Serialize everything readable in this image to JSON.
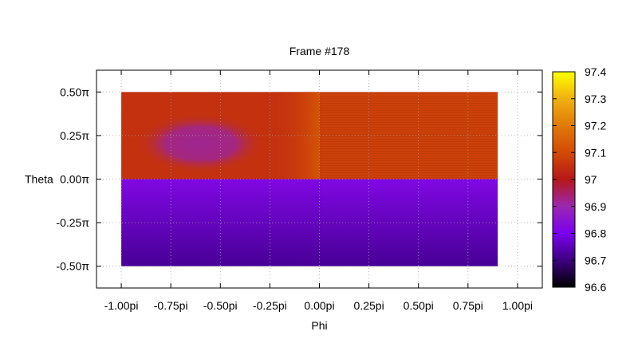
{
  "chart_data": {
    "type": "heatmap",
    "title": "Frame #178",
    "xlabel": "Phi",
    "ylabel": "Theta",
    "xlim": [
      -1.125,
      1.125
    ],
    "ylim": [
      -0.625,
      0.625
    ],
    "x_ticks": [
      {
        "value": -1.0,
        "label": "-1.00pi"
      },
      {
        "value": -0.75,
        "label": "-0.75pi"
      },
      {
        "value": -0.5,
        "label": "-0.50pi"
      },
      {
        "value": -0.25,
        "label": "-0.25pi"
      },
      {
        "value": 0.0,
        "label": "0.00pi"
      },
      {
        "value": 0.25,
        "label": "0.25pi"
      },
      {
        "value": 0.5,
        "label": "0.50pi"
      },
      {
        "value": 0.75,
        "label": "0.75pi"
      },
      {
        "value": 1.0,
        "label": "1.00pi"
      }
    ],
    "y_ticks": [
      {
        "value": 0.5,
        "label": "0.50π"
      },
      {
        "value": 0.25,
        "label": "0.25π"
      },
      {
        "value": 0.0,
        "label": "0.00π"
      },
      {
        "value": -0.25,
        "label": "-0.25π"
      },
      {
        "value": -0.5,
        "label": "-0.50π"
      }
    ],
    "grid": true,
    "data_extent": {
      "x": [
        -1.0,
        0.9
      ],
      "y": [
        -0.5,
        0.5
      ]
    },
    "regions": [
      {
        "name": "upper-left-background",
        "x": [
          -1.0,
          0.0
        ],
        "y": [
          0.0,
          0.5
        ],
        "value": 97.05
      },
      {
        "name": "hot-stripe-near-zero",
        "x": [
          -0.25,
          0.0
        ],
        "y": [
          0.0,
          0.5
        ],
        "value": 97.12
      },
      {
        "name": "cool-spot",
        "x": [
          -0.85,
          -0.35
        ],
        "y": [
          0.08,
          0.33
        ],
        "value": 96.92
      },
      {
        "name": "upper-right",
        "x": [
          0.0,
          0.9
        ],
        "y": [
          0.0,
          0.5
        ],
        "value": 97.08
      },
      {
        "name": "lower-half-top",
        "x": [
          -1.0,
          0.9
        ],
        "y": [
          -0.05,
          0.0
        ],
        "value": 96.82
      },
      {
        "name": "lower-half-bottom",
        "x": [
          -1.0,
          0.9
        ],
        "y": [
          -0.5,
          -0.45
        ],
        "value": 96.72
      }
    ],
    "colorbar": {
      "range": [
        96.6,
        97.4
      ],
      "ticks": [
        "96.6",
        "96.7",
        "96.8",
        "96.9",
        "97",
        "97.1",
        "97.2",
        "97.3",
        "97.4"
      ],
      "colormap": [
        {
          "value": 96.6,
          "color": "#000000"
        },
        {
          "value": 96.7,
          "color": "#3c0080"
        },
        {
          "value": 96.8,
          "color": "#7a00f0"
        },
        {
          "value": 96.9,
          "color": "#9a28b0"
        },
        {
          "value": 97.0,
          "color": "#b41818"
        },
        {
          "value": 97.1,
          "color": "#d24a06"
        },
        {
          "value": 97.2,
          "color": "#e07a08"
        },
        {
          "value": 97.3,
          "color": "#f0b010"
        },
        {
          "value": 97.4,
          "color": "#ffff00"
        }
      ]
    }
  }
}
